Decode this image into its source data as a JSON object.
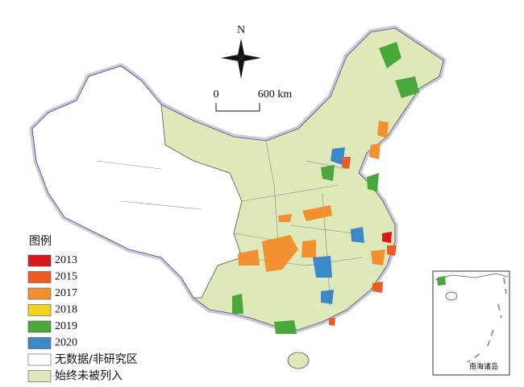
{
  "map": {
    "compass": "N",
    "scale": {
      "start": "0",
      "end": "600 km"
    },
    "legend": {
      "title": "图例",
      "items": [
        {
          "label": "2013",
          "color": "#d7191c"
        },
        {
          "label": "2015",
          "color": "#ee5a24"
        },
        {
          "label": "2017",
          "color": "#f39030"
        },
        {
          "label": "2018",
          "color": "#f4d21f"
        },
        {
          "label": "2019",
          "color": "#4aa83b"
        },
        {
          "label": "2020",
          "color": "#3b87c8"
        },
        {
          "label": "无数据/非研究区",
          "color": "#ffffff"
        },
        {
          "label": "始终未被列入",
          "color": "#dde9b8"
        }
      ]
    },
    "inset": {
      "label": "南海诸岛"
    }
  }
}
